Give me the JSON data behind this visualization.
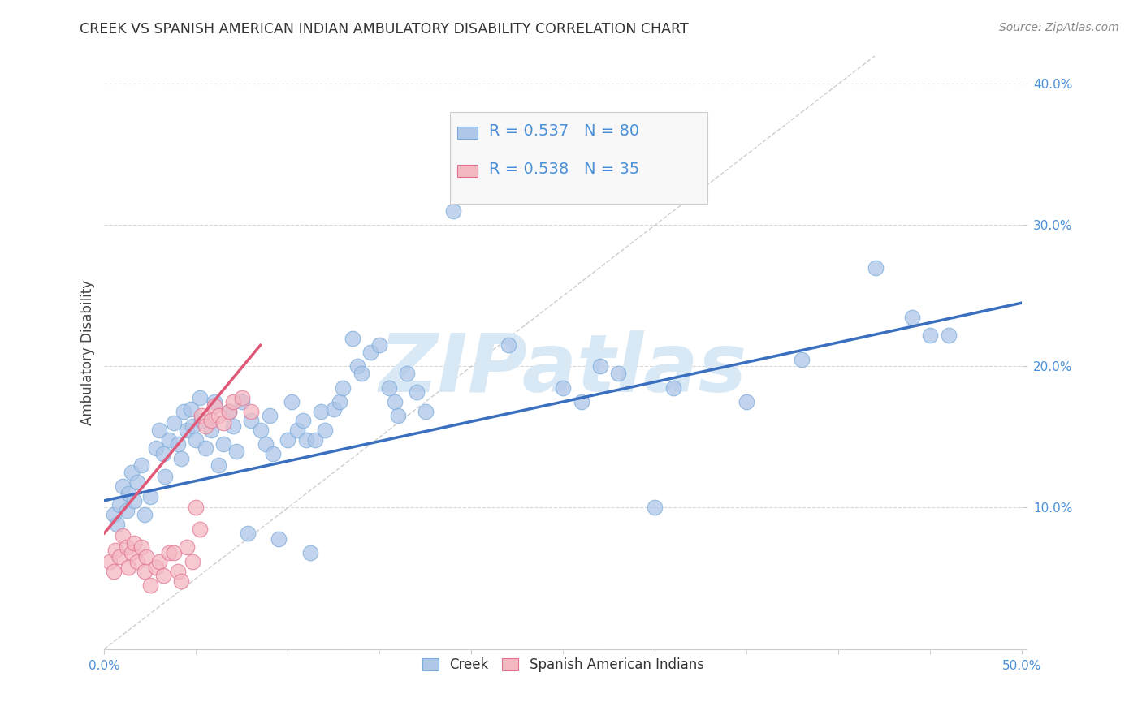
{
  "title": "CREEK VS SPANISH AMERICAN INDIAN AMBULATORY DISABILITY CORRELATION CHART",
  "source": "Source: ZipAtlas.com",
  "ylabel": "Ambulatory Disability",
  "xlim": [
    0.0,
    0.5
  ],
  "ylim": [
    0.0,
    0.42
  ],
  "xticks": [
    0.0,
    0.1,
    0.2,
    0.3,
    0.4,
    0.5
  ],
  "yticks": [
    0.0,
    0.1,
    0.2,
    0.3,
    0.4
  ],
  "xtick_labels_show": [
    "0.0%",
    "",
    "",
    "",
    "",
    "50.0%"
  ],
  "ytick_labels_show": [
    "",
    "10.0%",
    "20.0%",
    "30.0%",
    "40.0%"
  ],
  "legend_entries": [
    {
      "label": "Creek",
      "color": "#aec6e8",
      "edge_color": "#7aabdb",
      "R": "0.537",
      "N": "80"
    },
    {
      "label": "Spanish American Indians",
      "color": "#f4b8c1",
      "edge_color": "#e07090",
      "R": "0.538",
      "N": "35"
    }
  ],
  "blue_line_color": "#3a6fbf",
  "pink_line_color": "#e05878",
  "diagonal_color": "#c8c8c8",
  "watermark": "ZIPatlas",
  "watermark_color": "#d8e8f5",
  "background_color": "#ffffff",
  "grid_color": "#d8d8d8",
  "tick_label_color": "#4a90d9",
  "title_color": "#333333",
  "source_color": "#888888",
  "ylabel_color": "#444444",
  "blue_dots": [
    [
      0.005,
      0.095
    ],
    [
      0.007,
      0.088
    ],
    [
      0.008,
      0.102
    ],
    [
      0.01,
      0.115
    ],
    [
      0.012,
      0.098
    ],
    [
      0.013,
      0.11
    ],
    [
      0.015,
      0.125
    ],
    [
      0.016,
      0.105
    ],
    [
      0.018,
      0.118
    ],
    [
      0.02,
      0.13
    ],
    [
      0.022,
      0.095
    ],
    [
      0.025,
      0.108
    ],
    [
      0.028,
      0.142
    ],
    [
      0.03,
      0.155
    ],
    [
      0.032,
      0.138
    ],
    [
      0.033,
      0.122
    ],
    [
      0.035,
      0.148
    ],
    [
      0.038,
      0.16
    ],
    [
      0.04,
      0.145
    ],
    [
      0.042,
      0.135
    ],
    [
      0.043,
      0.168
    ],
    [
      0.045,
      0.155
    ],
    [
      0.047,
      0.17
    ],
    [
      0.048,
      0.158
    ],
    [
      0.05,
      0.148
    ],
    [
      0.052,
      0.178
    ],
    [
      0.053,
      0.162
    ],
    [
      0.055,
      0.142
    ],
    [
      0.058,
      0.155
    ],
    [
      0.06,
      0.175
    ],
    [
      0.062,
      0.13
    ],
    [
      0.065,
      0.145
    ],
    [
      0.068,
      0.168
    ],
    [
      0.07,
      0.158
    ],
    [
      0.072,
      0.14
    ],
    [
      0.075,
      0.175
    ],
    [
      0.078,
      0.082
    ],
    [
      0.08,
      0.162
    ],
    [
      0.085,
      0.155
    ],
    [
      0.088,
      0.145
    ],
    [
      0.09,
      0.165
    ],
    [
      0.092,
      0.138
    ],
    [
      0.095,
      0.078
    ],
    [
      0.1,
      0.148
    ],
    [
      0.102,
      0.175
    ],
    [
      0.105,
      0.155
    ],
    [
      0.108,
      0.162
    ],
    [
      0.11,
      0.148
    ],
    [
      0.112,
      0.068
    ],
    [
      0.115,
      0.148
    ],
    [
      0.118,
      0.168
    ],
    [
      0.12,
      0.155
    ],
    [
      0.125,
      0.17
    ],
    [
      0.128,
      0.175
    ],
    [
      0.13,
      0.185
    ],
    [
      0.135,
      0.22
    ],
    [
      0.138,
      0.2
    ],
    [
      0.14,
      0.195
    ],
    [
      0.145,
      0.21
    ],
    [
      0.15,
      0.215
    ],
    [
      0.155,
      0.185
    ],
    [
      0.158,
      0.175
    ],
    [
      0.16,
      0.165
    ],
    [
      0.165,
      0.195
    ],
    [
      0.17,
      0.182
    ],
    [
      0.175,
      0.168
    ],
    [
      0.19,
      0.31
    ],
    [
      0.22,
      0.215
    ],
    [
      0.25,
      0.185
    ],
    [
      0.26,
      0.175
    ],
    [
      0.27,
      0.2
    ],
    [
      0.28,
      0.195
    ],
    [
      0.3,
      0.1
    ],
    [
      0.31,
      0.185
    ],
    [
      0.35,
      0.175
    ],
    [
      0.38,
      0.205
    ],
    [
      0.42,
      0.27
    ],
    [
      0.44,
      0.235
    ],
    [
      0.45,
      0.222
    ],
    [
      0.46,
      0.222
    ]
  ],
  "pink_dots": [
    [
      0.003,
      0.062
    ],
    [
      0.005,
      0.055
    ],
    [
      0.006,
      0.07
    ],
    [
      0.008,
      0.065
    ],
    [
      0.01,
      0.08
    ],
    [
      0.012,
      0.072
    ],
    [
      0.013,
      0.058
    ],
    [
      0.015,
      0.068
    ],
    [
      0.016,
      0.075
    ],
    [
      0.018,
      0.062
    ],
    [
      0.02,
      0.072
    ],
    [
      0.022,
      0.055
    ],
    [
      0.023,
      0.065
    ],
    [
      0.025,
      0.045
    ],
    [
      0.028,
      0.058
    ],
    [
      0.03,
      0.062
    ],
    [
      0.032,
      0.052
    ],
    [
      0.035,
      0.068
    ],
    [
      0.038,
      0.068
    ],
    [
      0.04,
      0.055
    ],
    [
      0.042,
      0.048
    ],
    [
      0.045,
      0.072
    ],
    [
      0.048,
      0.062
    ],
    [
      0.05,
      0.1
    ],
    [
      0.052,
      0.085
    ],
    [
      0.053,
      0.165
    ],
    [
      0.055,
      0.158
    ],
    [
      0.058,
      0.162
    ],
    [
      0.06,
      0.172
    ],
    [
      0.062,
      0.165
    ],
    [
      0.065,
      0.16
    ],
    [
      0.068,
      0.168
    ],
    [
      0.07,
      0.175
    ],
    [
      0.075,
      0.178
    ],
    [
      0.08,
      0.168
    ]
  ],
  "blue_line_x": [
    0.0,
    0.5
  ],
  "blue_line_y": [
    0.105,
    0.245
  ],
  "pink_line_x": [
    0.0,
    0.085
  ],
  "pink_line_y": [
    0.082,
    0.215
  ]
}
